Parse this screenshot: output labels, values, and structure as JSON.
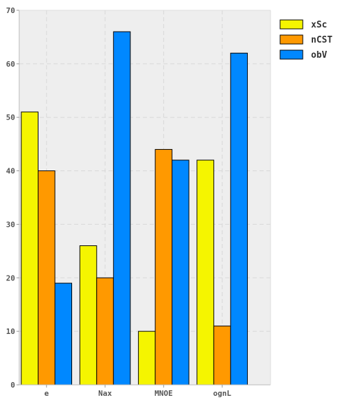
{
  "chart_data": {
    "type": "bar",
    "title": "",
    "xlabel": "",
    "ylabel": "",
    "categories": [
      "e",
      "Nax",
      "MNOE",
      "ognL"
    ],
    "series": [
      {
        "name": "xSc",
        "values": [
          51,
          26,
          10,
          42
        ],
        "color": "#f5f500"
      },
      {
        "name": "nCST",
        "values": [
          40,
          20,
          44,
          11
        ],
        "color": "#ff9900"
      },
      {
        "name": "obV",
        "values": [
          19,
          66,
          42,
          62
        ],
        "color": "#0088ff"
      }
    ],
    "ylim": [
      0,
      70
    ],
    "yticks": [
      0,
      10,
      20,
      30,
      40,
      50,
      60,
      70
    ],
    "grid": true,
    "legend_position": "top-right",
    "background": "#eeeeee"
  }
}
